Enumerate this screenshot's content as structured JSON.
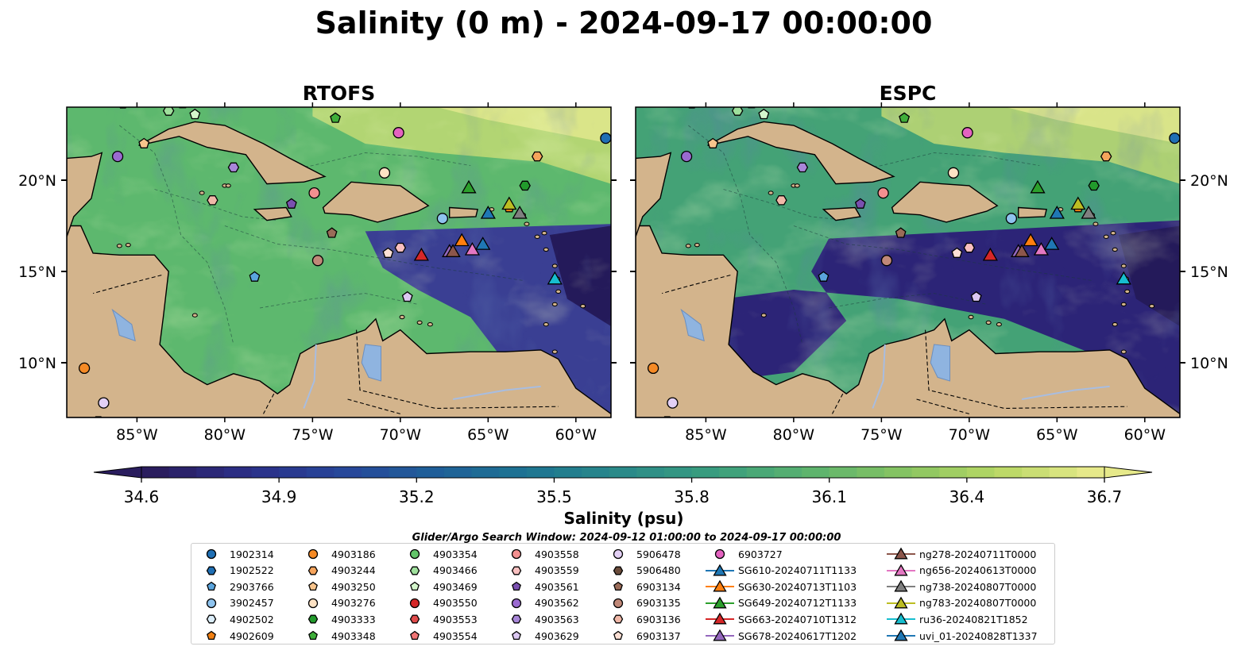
{
  "figure": {
    "title": "Salinity (0 m) - 2024-09-17 00:00:00",
    "search_window": "Glider/Argo Search Window: 2024-09-12 01:00:00 to 2024-09-17 00:00:00"
  },
  "chart_data": {
    "type": "heatmap",
    "panels": [
      {
        "title": "RTOFS",
        "basin_tint": "#5db86e",
        "east_tint": "#3a3f93"
      },
      {
        "title": "ESPC",
        "basin_tint": "#44a276",
        "east_tint": "#2c2477"
      }
    ],
    "x_ticks": [
      "85°W",
      "80°W",
      "75°W",
      "70°W",
      "65°W",
      "60°W"
    ],
    "x_tick_values": [
      -85,
      -80,
      -75,
      -70,
      -65,
      -60
    ],
    "y_ticks": [
      "20°N",
      "15°N",
      "10°N"
    ],
    "y_tick_values": [
      20,
      15,
      10
    ],
    "lon_range": [
      -89,
      -58
    ],
    "lat_range": [
      7,
      24
    ],
    "colorbar": {
      "label": "Salinity (psu)",
      "ticks": [
        "34.6",
        "34.9",
        "35.2",
        "35.5",
        "35.8",
        "36.1",
        "36.4",
        "36.7"
      ],
      "tick_values": [
        34.6,
        34.9,
        35.2,
        35.5,
        35.8,
        36.1,
        36.4,
        36.7
      ],
      "range": [
        34.6,
        36.7
      ],
      "extend": "both",
      "colors": [
        "#2a1d5e",
        "#2b2f88",
        "#27479a",
        "#1f5f99",
        "#1d7592",
        "#2a8a89",
        "#3a9e7e",
        "#5cb36e",
        "#86c462",
        "#b7d764",
        "#e6e98a"
      ]
    },
    "land_color": "#d3b48c",
    "lake_color": "#8fb4e0",
    "markers": [
      {
        "name": "1902314",
        "shape": "circle",
        "color": "#1f6fb4",
        "lon": -58.3,
        "lat": 22.3
      },
      {
        "name": "1902522",
        "shape": "hexagon",
        "color": "#1f6fb4",
        "lon": -87.2,
        "lat": 6.8
      },
      {
        "name": "2903766",
        "shape": "pentagon",
        "color": "#5aa4dd",
        "lon": -78.3,
        "lat": 14.7
      },
      {
        "name": "3902457",
        "shape": "circle",
        "color": "#8ec3ee",
        "lon": -67.6,
        "lat": 17.9
      },
      {
        "name": "4902502",
        "shape": "hexagon",
        "color": "#dceefa",
        "lon": -70.0,
        "lat": 24.3
      },
      {
        "name": "4902609",
        "shape": "pentagon",
        "color": "#f07f12",
        "lon": -63.8,
        "lat": 18.5
      },
      {
        "name": "4903186",
        "shape": "circle",
        "color": "#f58a25",
        "lon": -88.0,
        "lat": 9.7
      },
      {
        "name": "4903244",
        "shape": "hexagon",
        "color": "#f6a45c",
        "lon": -62.2,
        "lat": 21.3
      },
      {
        "name": "4903250",
        "shape": "pentagon",
        "color": "#f8c48c",
        "lon": -84.6,
        "lat": 22.0
      },
      {
        "name": "4903276",
        "shape": "circle",
        "color": "#fde2c4",
        "lon": -70.9,
        "lat": 20.4
      },
      {
        "name": "4903333",
        "shape": "hexagon",
        "color": "#229a2c",
        "lon": -62.9,
        "lat": 19.7
      },
      {
        "name": "4903348",
        "shape": "pentagon",
        "color": "#3fae3a",
        "lon": -73.7,
        "lat": 23.4
      },
      {
        "name": "4903354",
        "shape": "circle",
        "color": "#63c56a",
        "lon": -84.9,
        "lat": 24.5
      },
      {
        "name": "4903466",
        "shape": "hexagon",
        "color": "#9fe09c",
        "lon": -83.2,
        "lat": 23.8
      },
      {
        "name": "4903469",
        "shape": "pentagon",
        "color": "#d4f6cc",
        "lon": -81.7,
        "lat": 23.6
      },
      {
        "name": "4903550",
        "shape": "circle",
        "color": "#d62728",
        "lon": -90.5,
        "lat": 24.1
      },
      {
        "name": "4903553",
        "shape": "hexagon",
        "color": "#e04b4b",
        "lon": -85.8,
        "lat": 24.2
      },
      {
        "name": "4903554",
        "shape": "pentagon",
        "color": "#f07575",
        "lon": -82.4,
        "lat": 24.2
      },
      {
        "name": "4903558",
        "shape": "circle",
        "color": "#f49090",
        "lon": -74.9,
        "lat": 19.3
      },
      {
        "name": "4903559",
        "shape": "hexagon",
        "color": "#f9c0c0",
        "lon": -70.0,
        "lat": 16.3
      },
      {
        "name": "4903561",
        "shape": "pentagon",
        "color": "#7a50b0",
        "lon": -76.2,
        "lat": 18.7
      },
      {
        "name": "4903562",
        "shape": "circle",
        "color": "#9a6ad0",
        "lon": -86.1,
        "lat": 21.3
      },
      {
        "name": "4903563",
        "shape": "hexagon",
        "color": "#a886d8",
        "lon": -79.5,
        "lat": 20.7
      },
      {
        "name": "4903629",
        "shape": "pentagon",
        "color": "#dcc8f2",
        "lon": -69.6,
        "lat": 13.6
      },
      {
        "name": "5906478",
        "shape": "circle",
        "color": "#e3d0f5",
        "lon": -86.9,
        "lat": 7.8
      },
      {
        "name": "5906480",
        "shape": "hexagon",
        "color": "#6b4c3b",
        "lon": -74.0,
        "lat": 24.6
      },
      {
        "name": "6903134",
        "shape": "pentagon",
        "color": "#9a6b58",
        "lon": -73.9,
        "lat": 17.1
      },
      {
        "name": "6903135",
        "shape": "circle",
        "color": "#c08878",
        "lon": -74.7,
        "lat": 15.6
      },
      {
        "name": "6903136",
        "shape": "hexagon",
        "color": "#f0b8a8",
        "lon": -80.7,
        "lat": 18.9
      },
      {
        "name": "6903137",
        "shape": "pentagon",
        "color": "#fde0d5",
        "lon": -70.7,
        "lat": 16.0
      },
      {
        "name": "6903727",
        "shape": "circle",
        "color": "#e462c0",
        "lon": -70.1,
        "lat": 22.6
      }
    ],
    "gliders": [
      {
        "name": "SG610-20240711T1133",
        "color": "#1f77b4",
        "lon": -65.0,
        "lat": 18.2
      },
      {
        "name": "SG630-20240713T1103",
        "color": "#ff7f0e",
        "lon": -66.5,
        "lat": 16.7
      },
      {
        "name": "SG649-20240712T1133",
        "color": "#2ca02c",
        "lon": -66.1,
        "lat": 19.6
      },
      {
        "name": "SG663-20240710T1312",
        "color": "#d62728",
        "lon": -68.8,
        "lat": 15.9
      },
      {
        "name": "SG678-20240617T1202",
        "color": "#9467bd",
        "lon": -67.2,
        "lat": 16.1
      },
      {
        "name": "ng278-20240711T0000",
        "color": "#8c564b",
        "lon": -67.0,
        "lat": 16.1
      },
      {
        "name": "ng656-20240613T0000",
        "color": "#e377c2",
        "lon": -65.9,
        "lat": 16.2
      },
      {
        "name": "ng738-20240807T0000",
        "color": "#7f7f7f",
        "lon": -63.2,
        "lat": 18.2
      },
      {
        "name": "ng783-20240807T0000",
        "color": "#bcbd22",
        "lon": -63.8,
        "lat": 18.7
      },
      {
        "name": "ru36-20240821T1852",
        "color": "#17becf",
        "lon": -61.2,
        "lat": 14.6
      },
      {
        "name": "uvi_01-20240828T1337",
        "color": "#1f77b4",
        "lon": -65.3,
        "lat": 16.5
      }
    ]
  }
}
